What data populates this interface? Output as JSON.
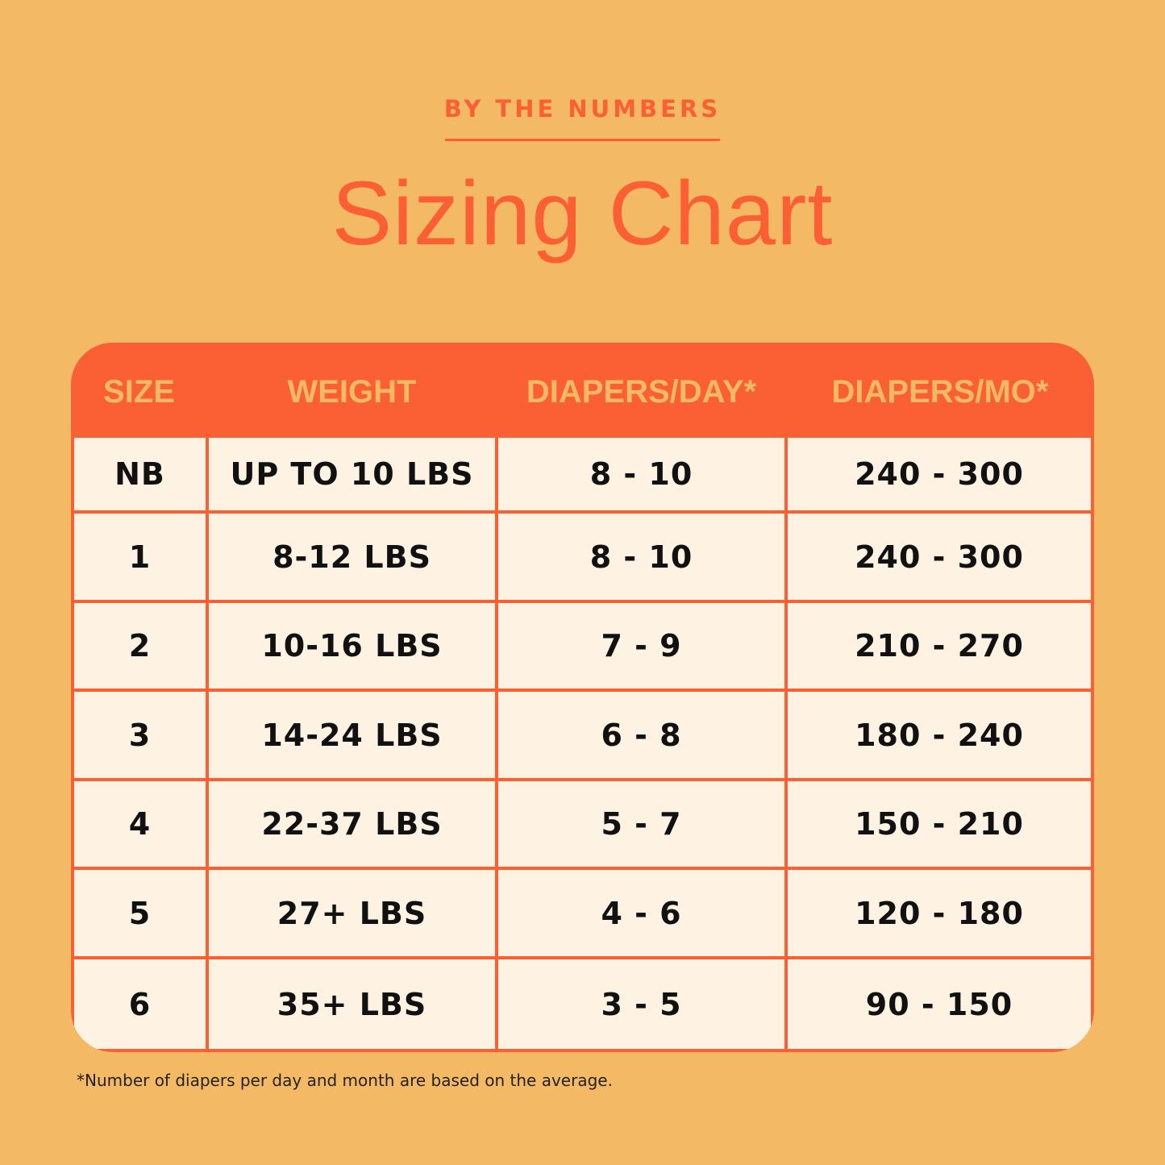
{
  "header": {
    "eyebrow": "BY THE NUMBERS",
    "title": "Sizing Chart"
  },
  "table": {
    "columns": [
      "SIZE",
      "WEIGHT",
      "DIAPERS/DAY*",
      "DIAPERS/MO*"
    ],
    "rows": [
      [
        "NB",
        "UP TO 10 LBS",
        "8 - 10",
        "240 - 300"
      ],
      [
        "1",
        "8-12 LBS",
        "8 - 10",
        "240 - 300"
      ],
      [
        "2",
        "10-16 LBS",
        "7 - 9",
        "210 - 270"
      ],
      [
        "3",
        "14-24 LBS",
        "6 - 8",
        "180 - 240"
      ],
      [
        "4",
        "22-37 LBS",
        "5 - 7",
        "150 - 210"
      ],
      [
        "5",
        "27+ LBS",
        "4 - 6",
        "120 - 180"
      ],
      [
        "6",
        "35+ LBS",
        "3 - 5",
        "90 - 150"
      ]
    ]
  },
  "footnote": "*Number of diapers per day and month are based on the average.",
  "colors": {
    "background": "#F4B965",
    "accent": "#FB5F34",
    "cell": "#FEF3E3"
  }
}
